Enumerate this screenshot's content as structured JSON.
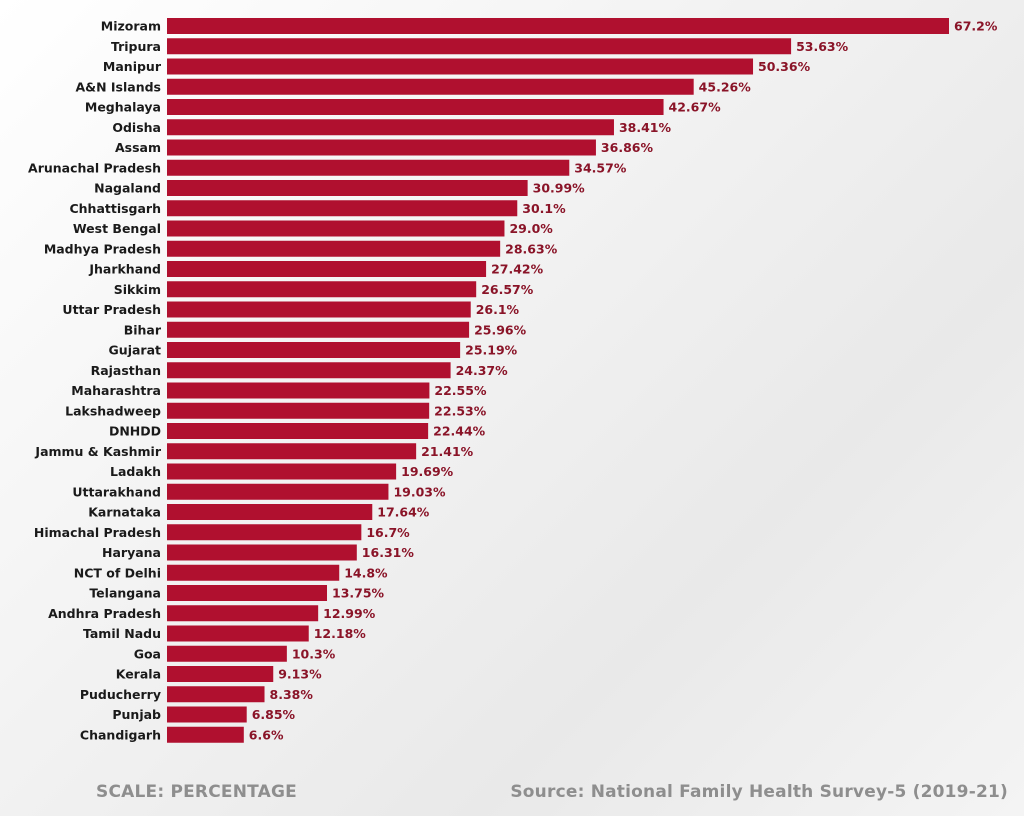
{
  "chart_data": {
    "type": "bar",
    "orientation": "horizontal",
    "categories": [
      "Mizoram",
      "Tripura",
      "Manipur",
      "A&N Islands",
      "Meghalaya",
      "Odisha",
      "Assam",
      "Arunachal Pradesh",
      "Nagaland",
      "Chhattisgarh",
      "West Bengal",
      "Madhya Pradesh",
      "Jharkhand",
      "Sikkim",
      "Uttar Pradesh",
      "Bihar",
      "Gujarat",
      "Rajasthan",
      "Maharashtra",
      "Lakshadweep",
      "DNHDD",
      "Jammu & Kashmir",
      "Ladakh",
      "Uttarakhand",
      "Karnataka",
      "Himachal Pradesh",
      "Haryana",
      "NCT of Delhi",
      "Telangana",
      "Andhra Pradesh",
      "Tamil Nadu",
      "Goa",
      "Kerala",
      "Puducherry",
      "Punjab",
      "Chandigarh"
    ],
    "values": [
      67.2,
      53.63,
      50.36,
      45.26,
      42.67,
      38.41,
      36.86,
      34.57,
      30.99,
      30.1,
      29.0,
      28.63,
      27.42,
      26.57,
      26.1,
      25.96,
      25.19,
      24.37,
      22.55,
      22.53,
      22.44,
      21.41,
      19.69,
      19.03,
      17.64,
      16.7,
      16.31,
      14.8,
      13.75,
      12.99,
      12.18,
      10.3,
      9.13,
      8.38,
      6.85,
      6.6
    ],
    "data_labels": [
      "67.2%",
      "53.63%",
      "50.36%",
      "45.26%",
      "42.67%",
      "38.41%",
      "36.86%",
      "34.57%",
      "30.99%",
      "30.1%",
      "29.0%",
      "28.63%",
      "27.42%",
      "26.57%",
      "26.1%",
      "25.96%",
      "25.19%",
      "24.37%",
      "22.55%",
      "22.53%",
      "22.44%",
      "21.41%",
      "19.69%",
      "19.03%",
      "17.64%",
      "16.7%",
      "16.31%",
      "14.8%",
      "13.75%",
      "12.99%",
      "12.18%",
      "10.3%",
      "9.13%",
      "8.38%",
      "6.85%",
      "6.6%"
    ],
    "bar_color": "#b0102f",
    "label_color": "#8a1428",
    "grid": false,
    "xlim": [
      0,
      67.2
    ]
  },
  "footer": {
    "scale": "SCALE: PERCENTAGE",
    "source": "Source: National Family Health Survey-5 (2019-21)"
  }
}
